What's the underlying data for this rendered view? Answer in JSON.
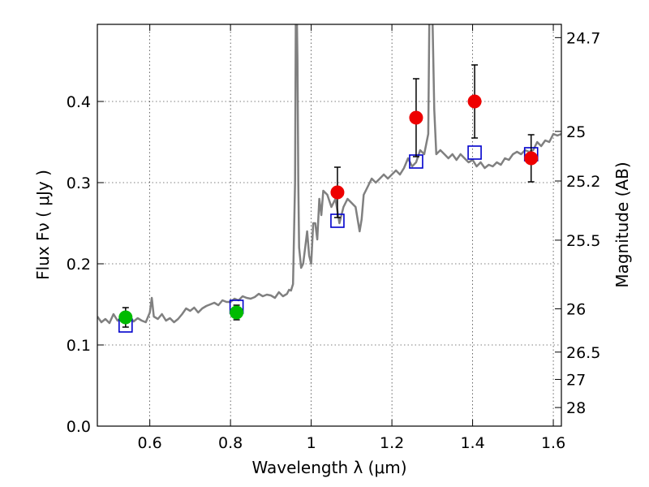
{
  "chart_data": {
    "type": "scatter",
    "title": "",
    "xlabel": "Wavelength  λ (μm)",
    "ylabel": "Flux  Fν  ( μJy )",
    "y2label": "Magnitude (AB)",
    "xlim": [
      0.47,
      1.62
    ],
    "ylim": [
      0.0,
      0.495
    ],
    "grid": true,
    "x_ticks": [
      {
        "value": 0.6,
        "label": "0.6"
      },
      {
        "value": 0.8,
        "label": "0.8"
      },
      {
        "value": 1.0,
        "label": "1"
      },
      {
        "value": 1.2,
        "label": "1.2"
      },
      {
        "value": 1.4,
        "label": "1.4"
      },
      {
        "value": 1.6,
        "label": "1.6"
      }
    ],
    "y_ticks": [
      {
        "value": 0.0,
        "label": "0.0"
      },
      {
        "value": 0.1,
        "label": "0.1"
      },
      {
        "value": 0.2,
        "label": "0.2"
      },
      {
        "value": 0.3,
        "label": "0.3"
      },
      {
        "value": 0.4,
        "label": "0.4"
      }
    ],
    "y2_ticks": [
      {
        "value": 24.7,
        "label": "24.7"
      },
      {
        "value": 25.0,
        "label": "25"
      },
      {
        "value": 25.2,
        "label": "25.2"
      },
      {
        "value": 25.5,
        "label": "25.5"
      },
      {
        "value": 26.0,
        "label": "26"
      },
      {
        "value": 26.5,
        "label": "26.5"
      },
      {
        "value": 27.0,
        "label": "27"
      },
      {
        "value": 28.0,
        "label": "28"
      }
    ],
    "series": [
      {
        "marker": "line",
        "color": "#808080",
        "x": [
          0.47,
          0.48,
          0.49,
          0.5,
          0.51,
          0.52,
          0.53,
          0.54,
          0.55,
          0.56,
          0.57,
          0.58,
          0.59,
          0.6,
          0.605,
          0.61,
          0.62,
          0.63,
          0.64,
          0.65,
          0.66,
          0.67,
          0.68,
          0.69,
          0.7,
          0.71,
          0.72,
          0.73,
          0.74,
          0.75,
          0.76,
          0.77,
          0.78,
          0.79,
          0.8,
          0.81,
          0.82,
          0.83,
          0.84,
          0.85,
          0.86,
          0.87,
          0.88,
          0.89,
          0.9,
          0.91,
          0.92,
          0.93,
          0.94,
          0.945,
          0.95,
          0.955,
          0.96,
          0.962,
          0.964,
          0.966,
          0.968,
          0.97,
          0.975,
          0.98,
          0.985,
          0.99,
          0.995,
          1.0,
          1.005,
          1.01,
          1.015,
          1.02,
          1.025,
          1.03,
          1.04,
          1.05,
          1.06,
          1.07,
          1.08,
          1.09,
          1.1,
          1.11,
          1.12,
          1.125,
          1.13,
          1.14,
          1.15,
          1.16,
          1.17,
          1.18,
          1.19,
          1.2,
          1.21,
          1.22,
          1.23,
          1.24,
          1.25,
          1.26,
          1.27,
          1.28,
          1.29,
          1.293,
          1.296,
          1.3,
          1.305,
          1.31,
          1.32,
          1.33,
          1.34,
          1.35,
          1.36,
          1.37,
          1.38,
          1.39,
          1.4,
          1.41,
          1.42,
          1.43,
          1.44,
          1.45,
          1.46,
          1.47,
          1.48,
          1.49,
          1.5,
          1.51,
          1.52,
          1.53,
          1.54,
          1.55,
          1.56,
          1.57,
          1.58,
          1.59,
          1.6,
          1.61,
          1.62
        ],
        "y": [
          0.135,
          0.128,
          0.132,
          0.127,
          0.138,
          0.13,
          0.133,
          0.128,
          0.135,
          0.129,
          0.133,
          0.13,
          0.128,
          0.14,
          0.158,
          0.135,
          0.132,
          0.138,
          0.13,
          0.133,
          0.128,
          0.132,
          0.138,
          0.145,
          0.142,
          0.146,
          0.14,
          0.145,
          0.148,
          0.15,
          0.152,
          0.149,
          0.155,
          0.153,
          0.153,
          0.157,
          0.155,
          0.16,
          0.158,
          0.157,
          0.159,
          0.163,
          0.16,
          0.162,
          0.161,
          0.158,
          0.165,
          0.16,
          0.163,
          0.168,
          0.167,
          0.175,
          0.3,
          0.52,
          0.52,
          0.45,
          0.3,
          0.22,
          0.195,
          0.2,
          0.22,
          0.24,
          0.21,
          0.2,
          0.25,
          0.25,
          0.23,
          0.28,
          0.26,
          0.29,
          0.285,
          0.27,
          0.28,
          0.25,
          0.27,
          0.28,
          0.275,
          0.27,
          0.24,
          0.255,
          0.285,
          0.295,
          0.305,
          0.3,
          0.305,
          0.31,
          0.305,
          0.31,
          0.315,
          0.31,
          0.318,
          0.33,
          0.32,
          0.325,
          0.34,
          0.335,
          0.36,
          0.52,
          0.52,
          0.52,
          0.39,
          0.335,
          0.34,
          0.335,
          0.33,
          0.335,
          0.328,
          0.335,
          0.33,
          0.325,
          0.328,
          0.32,
          0.325,
          0.318,
          0.322,
          0.32,
          0.325,
          0.322,
          0.33,
          0.328,
          0.335,
          0.338,
          0.335,
          0.34,
          0.338,
          0.34,
          0.35,
          0.345,
          0.352,
          0.35,
          0.36,
          0.358,
          0.36
        ]
      },
      {
        "marker": "open-square",
        "color": "#0000cc",
        "x": [
          0.54,
          0.815,
          1.065,
          1.26,
          1.405,
          1.545
        ],
        "y": [
          0.124,
          0.147,
          0.253,
          0.326,
          0.337,
          0.335
        ]
      },
      {
        "marker": "filled-circle",
        "color": "#00bb00",
        "x": [
          0.54,
          0.815
        ],
        "y": [
          0.134,
          0.14
        ],
        "err": [
          0.012,
          0.009
        ]
      },
      {
        "marker": "filled-circle",
        "color": "#ee0000",
        "x": [
          1.065,
          1.26,
          1.405,
          1.545
        ],
        "y": [
          0.288,
          0.38,
          0.4,
          0.33
        ],
        "err": [
          0.031,
          0.048,
          0.045,
          0.029
        ]
      }
    ]
  }
}
